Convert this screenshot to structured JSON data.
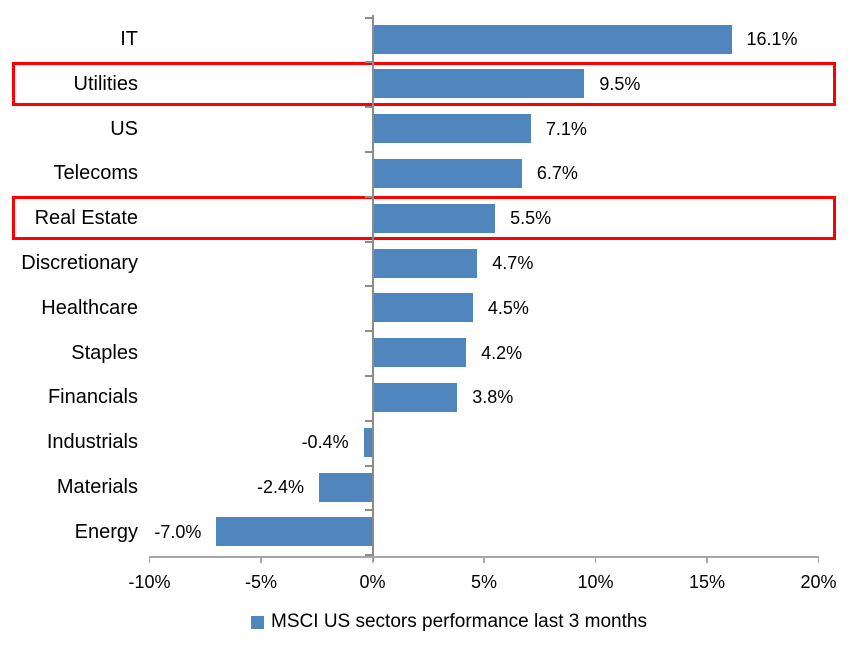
{
  "chart_data": {
    "type": "bar",
    "orientation": "horizontal",
    "categories": [
      "IT",
      "Utilities",
      "US",
      "Telecoms",
      "Real Estate",
      "Discretionary",
      "Healthcare",
      "Staples",
      "Financials",
      "Industrials",
      "Materials",
      "Energy"
    ],
    "values": [
      16.1,
      9.5,
      7.1,
      6.7,
      5.5,
      4.7,
      4.5,
      4.2,
      3.8,
      -0.4,
      -2.4,
      -7.0
    ],
    "data_labels": [
      "16.1%",
      "9.5%",
      "7.1%",
      "6.7%",
      "5.5%",
      "4.7%",
      "4.5%",
      "4.2%",
      "3.8%",
      "-0.4%",
      "-2.4%",
      "-7.0%"
    ],
    "x_tick_labels": [
      "-10%",
      "-5%",
      "0%",
      "5%",
      "10%",
      "15%",
      "20%"
    ],
    "x_tick_values": [
      -10,
      -5,
      0,
      5,
      10,
      15,
      20
    ],
    "xlim": [
      -10,
      20
    ],
    "grid": "off",
    "legend": "MSCI US sectors performance last 3 months",
    "legend_position": "bottom",
    "highlighted_categories": [
      "Utilities",
      "Real Estate"
    ],
    "colors": {
      "bar": "#4e86bd",
      "highlight_box": "#ff0000",
      "value_axis": "#8c8c8c",
      "category_axis": "#a6a6a6",
      "label_text": "#000000"
    }
  }
}
